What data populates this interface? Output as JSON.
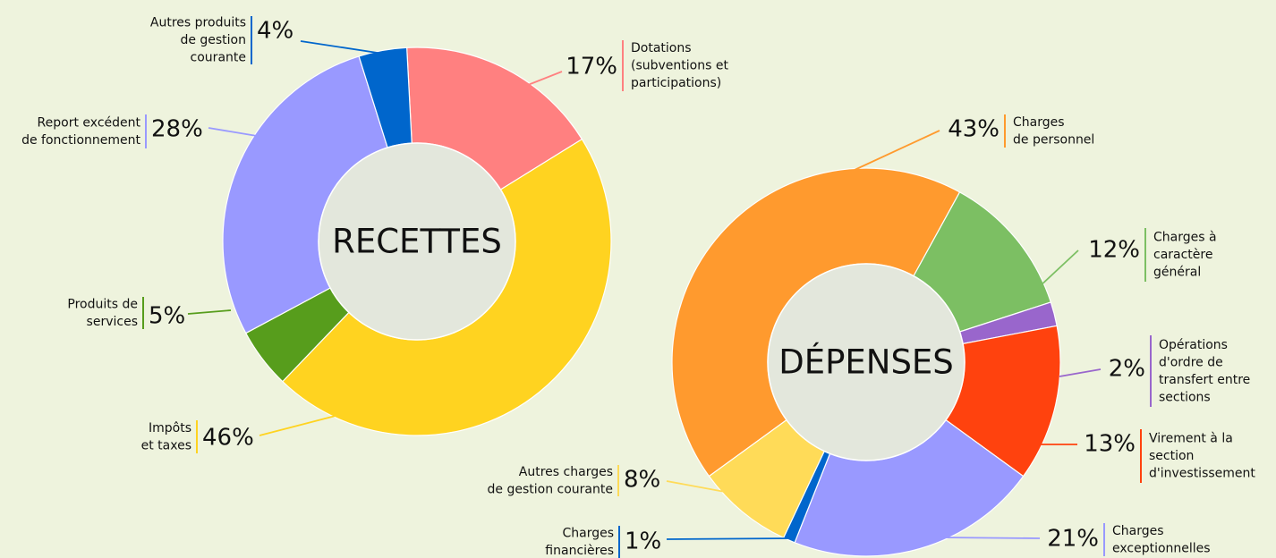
{
  "chart_data": [
    {
      "type": "pie",
      "title": "RECETTES",
      "categories": [
        "Dotations\n(subventions et\nparticipations)",
        "Impôts\net taxes",
        "Produits de\nservices",
        "Report excédent\nde fonctionnement",
        "Autres produits\nde gestion\ncourante"
      ],
      "values": [
        17,
        46,
        5,
        28,
        4
      ],
      "value_labels": [
        "17%",
        "46%",
        "5%",
        "28%",
        "4%"
      ],
      "colors": [
        "#ff8080",
        "#ffd320",
        "#579d1c",
        "#9999ff",
        "#0066cc"
      ]
    },
    {
      "type": "pie",
      "title": "DÉPENSES",
      "categories": [
        "Charges\nde personnel",
        "Charges à\ncaractère\ngénéral",
        "Opérations\nd'ordre de\ntransfert entre\nsections",
        "Virement à la\nsection\nd'investissement",
        "Charges\nexceptionnelles",
        "Charges\nfinancières",
        "Autres charges\nde gestion courante"
      ],
      "values": [
        43,
        12,
        2,
        13,
        21,
        1,
        8
      ],
      "value_labels": [
        "43%",
        "12%",
        "2%",
        "13%",
        "21%",
        "1%",
        "8%"
      ],
      "colors": [
        "#ff9a2e",
        "#7cbf63",
        "#9966cc",
        "#ff420e",
        "#9999ff",
        "#0066cc",
        "#ffdb58"
      ]
    }
  ]
}
